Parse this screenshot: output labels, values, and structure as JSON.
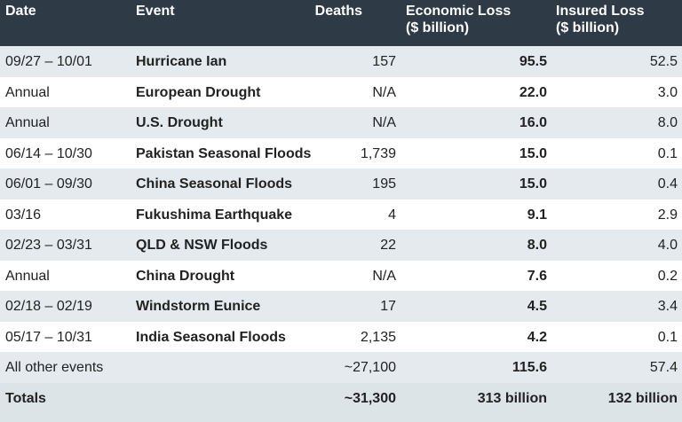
{
  "table": {
    "header": [
      "Date",
      "Event",
      "Deaths",
      "Economic Loss\n($ billion)",
      "Insured Loss\n($ billion)"
    ],
    "rows": [
      [
        "09/27 – 10/01",
        "Hurricane Ian",
        "157",
        "95.5",
        "52.5"
      ],
      [
        "Annual",
        "European Drought",
        "N/A",
        "22.0",
        "3.0"
      ],
      [
        "Annual",
        "U.S. Drought",
        "N/A",
        "16.0",
        "8.0"
      ],
      [
        "06/14 – 10/30",
        "Pakistan Seasonal Floods",
        "1,739",
        "15.0",
        "0.1"
      ],
      [
        "06/01 – 09/30",
        "China Seasonal Floods",
        "195",
        "15.0",
        "0.4"
      ],
      [
        "03/16",
        "Fukushima Earthquake",
        "4",
        "9.1",
        "2.9"
      ],
      [
        "02/23 – 03/31",
        "QLD & NSW Floods",
        "22",
        "8.0",
        "4.0"
      ],
      [
        "Annual",
        "China Drought",
        "N/A",
        "7.6",
        "0.2"
      ],
      [
        "02/18 – 02/19",
        "Windstorm Eunice",
        "17",
        "4.5",
        "3.4"
      ],
      [
        "05/17 – 10/31",
        "India Seasonal Floods",
        "2,135",
        "4.2",
        "0.1"
      ]
    ],
    "other": [
      "All other events",
      "~27,100",
      "115.6",
      "57.4"
    ],
    "totals": [
      "Totals",
      "~31,300",
      "313 billion",
      "132 billion"
    ]
  }
}
